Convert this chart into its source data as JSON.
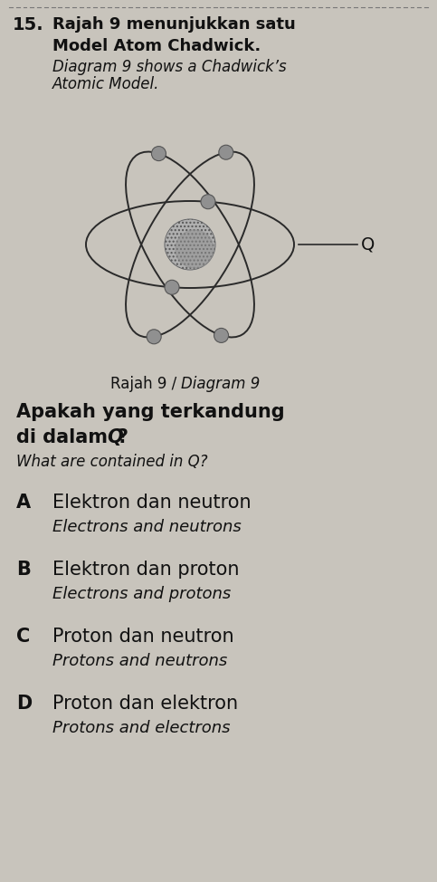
{
  "background_color": "#c8c4bc",
  "question_number": "15.",
  "title_line1": "Rajah 9 menunjukkan satu",
  "title_line2": "Model Atom Chadwick.",
  "subtitle_line1": "Diagram 9 shows a Chadwick’s",
  "subtitle_line2": "Atomic Model.",
  "diagram_caption_bold": "Rajah 9 / ",
  "diagram_caption_italic": "Diagram 9",
  "question_malay_line1": "Apakah yang terkandung",
  "question_malay_line2": "di dalam ",
  "question_malay_Q": "Q",
  "question_malay_end": "?",
  "question_english": "What are contained in Q?",
  "options": [
    {
      "letter": "A",
      "malay": "Elektron dan neutron",
      "english": "Electrons and neutrons"
    },
    {
      "letter": "B",
      "malay": "Elektron dan proton",
      "english": "Electrons and protons"
    },
    {
      "letter": "C",
      "malay": "Proton dan neutron",
      "english": "Protons and neutrons"
    },
    {
      "letter": "D",
      "malay": "Proton dan elektron",
      "english": "Protons and electrons"
    }
  ],
  "orbit_color": "#2a2a2a",
  "nucleus_fill": "#7a7a7a",
  "nucleus_stipple": "#404040",
  "electron_color": "#909090",
  "electron_edge": "#555555",
  "line_color": "#2a2a2a",
  "text_color": "#111111",
  "dotted_line_color": "#777777"
}
